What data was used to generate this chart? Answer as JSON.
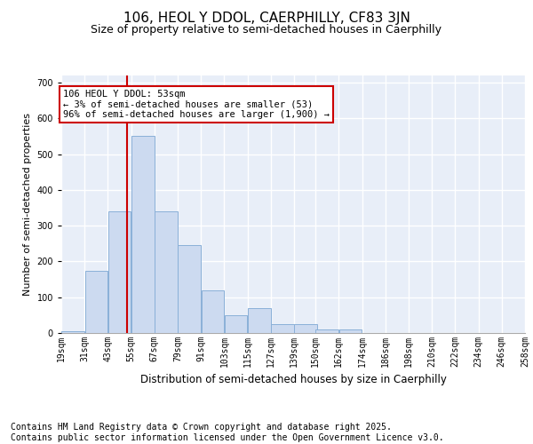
{
  "title1": "106, HEOL Y DDOL, CAERPHILLY, CF83 3JN",
  "title2": "Size of property relative to semi-detached houses in Caerphilly",
  "xlabel": "Distribution of semi-detached houses by size in Caerphilly",
  "ylabel": "Number of semi-detached properties",
  "bin_labels": [
    "19sqm",
    "31sqm",
    "43sqm",
    "55sqm",
    "67sqm",
    "79sqm",
    "91sqm",
    "103sqm",
    "115sqm",
    "127sqm",
    "139sqm",
    "150sqm",
    "162sqm",
    "174sqm",
    "186sqm",
    "198sqm",
    "210sqm",
    "222sqm",
    "234sqm",
    "246sqm",
    "258sqm"
  ],
  "bin_edges": [
    19,
    31,
    43,
    55,
    67,
    79,
    91,
    103,
    115,
    127,
    139,
    150,
    162,
    174,
    186,
    198,
    210,
    222,
    234,
    246,
    258
  ],
  "values": [
    5,
    175,
    340,
    550,
    340,
    245,
    120,
    50,
    70,
    25,
    25,
    10,
    10,
    0,
    0,
    0,
    0,
    0,
    0,
    0
  ],
  "bar_color": "#ccdaf0",
  "bar_edge_color": "#8ab0d8",
  "property_line_x": 53,
  "annotation_title": "106 HEOL Y DDOL: 53sqm",
  "annotation_line1": "← 3% of semi-detached houses are smaller (53)",
  "annotation_line2": "96% of semi-detached houses are larger (1,900) →",
  "vline_color": "#cc0000",
  "annotation_box_edgecolor": "#cc0000",
  "ylim": [
    0,
    720
  ],
  "yticks": [
    0,
    100,
    200,
    300,
    400,
    500,
    600,
    700
  ],
  "background_color": "#e8eef8",
  "grid_color": "#ffffff",
  "footer1": "Contains HM Land Registry data © Crown copyright and database right 2025.",
  "footer2": "Contains public sector information licensed under the Open Government Licence v3.0.",
  "footer_fontsize": 7.0,
  "title1_fontsize": 11,
  "title2_fontsize": 9,
  "ylabel_fontsize": 8,
  "xlabel_fontsize": 8.5,
  "tick_fontsize": 7,
  "annot_fontsize": 7.5
}
